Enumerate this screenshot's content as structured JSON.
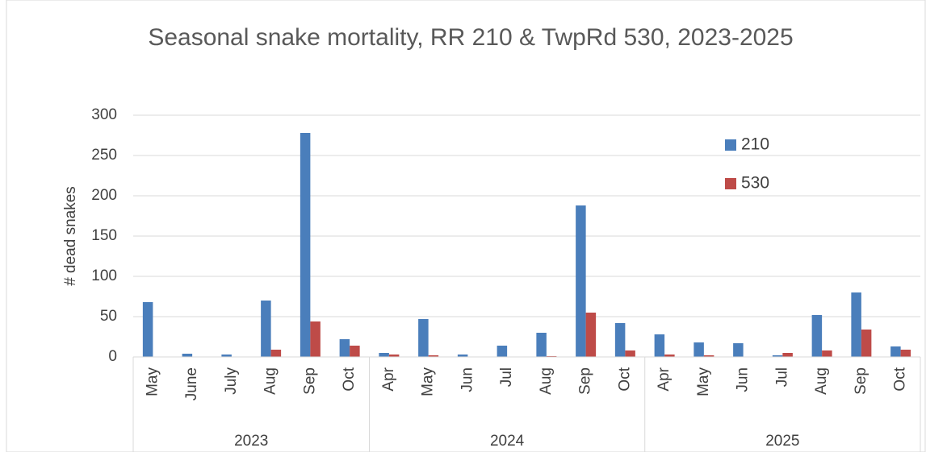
{
  "chart_data": {
    "type": "bar",
    "title": "Seasonal snake mortality, RR 210 & TwpRd 530, 2023-2025",
    "ylabel": "# dead snakes",
    "groups": [
      {
        "name": "2023",
        "categories": [
          "May",
          "June",
          "July",
          "Aug",
          "Sep",
          "Oct"
        ]
      },
      {
        "name": "2024",
        "categories": [
          "Apr",
          "May",
          "Jun",
          "Jul",
          "Aug",
          "Sep",
          "Oct"
        ]
      },
      {
        "name": "2025",
        "categories": [
          "Apr",
          "May",
          "Jun",
          "Jul",
          "Aug",
          "Sep",
          "Oct"
        ]
      }
    ],
    "series": [
      {
        "name": "210",
        "color": "#4a7ebb",
        "values": [
          68,
          4,
          3,
          70,
          278,
          22,
          5,
          47,
          3,
          14,
          30,
          188,
          42,
          28,
          18,
          17,
          2,
          52,
          80,
          13
        ]
      },
      {
        "name": "530",
        "color": "#be4b48",
        "values": [
          0,
          0,
          0,
          9,
          44,
          14,
          3,
          2,
          0,
          0,
          1,
          55,
          8,
          3,
          2,
          0,
          5,
          8,
          34,
          9
        ]
      }
    ],
    "ylim": [
      0,
      300
    ],
    "yticks": [
      0,
      50,
      100,
      150,
      200,
      250,
      300
    ],
    "grid": true,
    "legend": "upper right"
  }
}
